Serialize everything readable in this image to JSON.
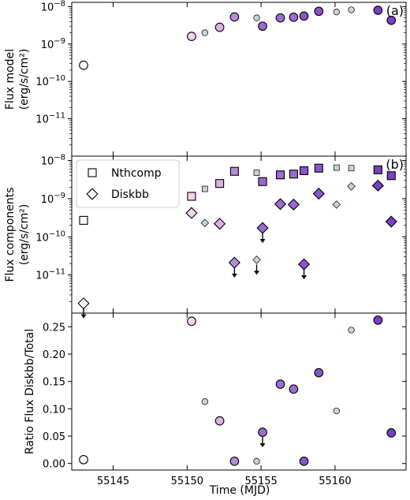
{
  "figure": {
    "xlabel": "Time (MJD)",
    "x_ticks": [
      55145,
      55150,
      55155,
      55160
    ],
    "x_tick_labels": [
      "55145",
      "55150",
      "55155",
      "55160"
    ],
    "xlim": [
      55142.2,
      55164.8
    ]
  },
  "colors": {
    "light_pink": "#f3d2ef",
    "pink": "#dfb0e6",
    "lavender": "#b98ad9",
    "medium_purple": "#9b6bd0",
    "purple": "#8a55c8",
    "dark_purple": "#7a3fc2",
    "gray_small": "#c6d4d0",
    "open": "#ffffff"
  },
  "chart_data": [
    {
      "type": "scatter",
      "panel_label": "(a)",
      "ylabel_line1": "Flux model",
      "ylabel_line2": "(erg/s/cm²)",
      "yscale": "log",
      "ylim": [
        1e-12,
        1.3e-08
      ],
      "y_ticks": [
        1e-08,
        1e-09,
        1e-10,
        1e-11
      ],
      "y_tick_labels": [
        {
          "base": "10",
          "exp": "−8"
        },
        {
          "base": "10",
          "exp": "−9"
        },
        {
          "base": "10",
          "exp": "−10"
        },
        {
          "base": "10",
          "exp": "−11"
        }
      ],
      "series": [
        {
          "marker": "circle",
          "points": [
            {
              "x": 55143.0,
              "y": 2.7e-10,
              "color": "open",
              "size": "large"
            },
            {
              "x": 55150.3,
              "y": 1.6e-09,
              "color": "light_pink",
              "size": "large"
            },
            {
              "x": 55151.2,
              "y": 2e-09,
              "color": "gray_small",
              "size": "small"
            },
            {
              "x": 55152.2,
              "y": 2.8e-09,
              "color": "pink",
              "size": "large"
            },
            {
              "x": 55153.2,
              "y": 5.3e-09,
              "color": "lavender",
              "size": "large"
            },
            {
              "x": 55154.7,
              "y": 5e-09,
              "color": "gray_small",
              "size": "small"
            },
            {
              "x": 55155.1,
              "y": 3e-09,
              "color": "medium_purple",
              "size": "large"
            },
            {
              "x": 55156.3,
              "y": 5e-09,
              "color": "medium_purple",
              "size": "large"
            },
            {
              "x": 55157.2,
              "y": 5.2e-09,
              "color": "medium_purple",
              "size": "large"
            },
            {
              "x": 55157.9,
              "y": 5.6e-09,
              "color": "purple",
              "size": "large"
            },
            {
              "x": 55158.9,
              "y": 7.5e-09,
              "color": "purple",
              "size": "large"
            },
            {
              "x": 55160.1,
              "y": 7.2e-09,
              "color": "gray_small",
              "size": "small"
            },
            {
              "x": 55161.1,
              "y": 8.2e-09,
              "color": "gray_small",
              "size": "small"
            },
            {
              "x": 55162.9,
              "y": 8e-09,
              "color": "dark_purple",
              "size": "large"
            },
            {
              "x": 55163.8,
              "y": 4.3e-09,
              "color": "dark_purple",
              "size": "large"
            }
          ]
        }
      ]
    },
    {
      "type": "scatter",
      "panel_label": "(b)",
      "ylabel_line1": "Flux components",
      "ylabel_line2": "(erg/s/cm²)",
      "yscale": "log",
      "ylim": [
        1e-12,
        1.3e-08
      ],
      "y_ticks": [
        1e-08,
        1e-09,
        1e-10,
        1e-11
      ],
      "y_tick_labels": [
        {
          "base": "10",
          "exp": "−8"
        },
        {
          "base": "10",
          "exp": "−9"
        },
        {
          "base": "10",
          "exp": "−10"
        },
        {
          "base": "10",
          "exp": "−11"
        }
      ],
      "legend": {
        "placement": "upper-left",
        "entries": [
          {
            "label": "Nthcomp",
            "marker": "square"
          },
          {
            "label": "Diskbb",
            "marker": "diamond"
          }
        ]
      },
      "series": [
        {
          "name": "Nthcomp",
          "marker": "square",
          "points": [
            {
              "x": 55143.0,
              "y": 2.7e-10,
              "color": "open",
              "size": "large"
            },
            {
              "x": 55150.3,
              "y": 1.15e-09,
              "color": "light_pink",
              "size": "large"
            },
            {
              "x": 55151.2,
              "y": 1.8e-09,
              "color": "gray_small",
              "size": "small"
            },
            {
              "x": 55152.2,
              "y": 2.5e-09,
              "color": "pink",
              "size": "large"
            },
            {
              "x": 55153.2,
              "y": 5.2e-09,
              "color": "lavender",
              "size": "large"
            },
            {
              "x": 55154.7,
              "y": 4.8e-09,
              "color": "gray_small",
              "size": "small"
            },
            {
              "x": 55155.1,
              "y": 2.8e-09,
              "color": "medium_purple",
              "size": "large"
            },
            {
              "x": 55156.3,
              "y": 4.2e-09,
              "color": "medium_purple",
              "size": "large"
            },
            {
              "x": 55157.2,
              "y": 4.4e-09,
              "color": "medium_purple",
              "size": "large"
            },
            {
              "x": 55157.9,
              "y": 5.4e-09,
              "color": "purple",
              "size": "large"
            },
            {
              "x": 55158.9,
              "y": 6.3e-09,
              "color": "purple",
              "size": "large"
            },
            {
              "x": 55160.1,
              "y": 6.5e-09,
              "color": "gray_small",
              "size": "small"
            },
            {
              "x": 55161.1,
              "y": 6.3e-09,
              "color": "gray_small",
              "size": "small"
            },
            {
              "x": 55162.9,
              "y": 5.7e-09,
              "color": "dark_purple",
              "size": "large"
            },
            {
              "x": 55163.8,
              "y": 4e-09,
              "color": "dark_purple",
              "size": "large"
            }
          ]
        },
        {
          "name": "Diskbb",
          "marker": "diamond",
          "points": [
            {
              "x": 55143.0,
              "y": 1.8e-12,
              "color": "open",
              "size": "large",
              "upper_limit": true
            },
            {
              "x": 55150.3,
              "y": 4.2e-10,
              "color": "light_pink",
              "size": "large"
            },
            {
              "x": 55151.2,
              "y": 2.3e-10,
              "color": "gray_small",
              "size": "small"
            },
            {
              "x": 55152.2,
              "y": 2.2e-10,
              "color": "pink",
              "size": "large"
            },
            {
              "x": 55153.2,
              "y": 2.1e-11,
              "color": "lavender",
              "size": "large",
              "upper_limit": true
            },
            {
              "x": 55154.7,
              "y": 2.5e-11,
              "color": "gray_small",
              "size": "small",
              "upper_limit": true
            },
            {
              "x": 55155.1,
              "y": 1.7e-10,
              "color": "medium_purple",
              "size": "large",
              "upper_limit": true
            },
            {
              "x": 55156.3,
              "y": 7.2e-10,
              "color": "medium_purple",
              "size": "large"
            },
            {
              "x": 55157.2,
              "y": 7e-10,
              "color": "medium_purple",
              "size": "large"
            },
            {
              "x": 55157.9,
              "y": 1.9e-11,
              "color": "purple",
              "size": "large",
              "upper_limit": true
            },
            {
              "x": 55158.9,
              "y": 1.35e-09,
              "color": "purple",
              "size": "large"
            },
            {
              "x": 55160.1,
              "y": 7e-10,
              "color": "gray_small",
              "size": "small"
            },
            {
              "x": 55161.1,
              "y": 2.1e-09,
              "color": "gray_small",
              "size": "small"
            },
            {
              "x": 55162.9,
              "y": 2.2e-09,
              "color": "dark_purple",
              "size": "large"
            },
            {
              "x": 55163.8,
              "y": 2.5e-10,
              "color": "dark_purple",
              "size": "large"
            }
          ]
        }
      ]
    },
    {
      "type": "scatter",
      "ylabel_line1": "Ratio Flux Diskbb/Total",
      "ylabel_line2": "",
      "yscale": "linear",
      "ylim": [
        -0.012,
        0.275
      ],
      "y_ticks": [
        0.0,
        0.05,
        0.1,
        0.15,
        0.2,
        0.25
      ],
      "y_tick_labels": [
        "0.00",
        "0.05",
        "0.10",
        "0.15",
        "0.20",
        "0.25"
      ],
      "series": [
        {
          "marker": "circle",
          "points": [
            {
              "x": 55143.0,
              "y": 0.007,
              "color": "open",
              "size": "large"
            },
            {
              "x": 55150.3,
              "y": 0.26,
              "color": "light_pink",
              "size": "large"
            },
            {
              "x": 55151.2,
              "y": 0.113,
              "color": "gray_small",
              "size": "small"
            },
            {
              "x": 55152.2,
              "y": 0.078,
              "color": "pink",
              "size": "large"
            },
            {
              "x": 55153.2,
              "y": 0.004,
              "color": "lavender",
              "size": "large"
            },
            {
              "x": 55154.7,
              "y": 0.004,
              "color": "gray_small",
              "size": "small"
            },
            {
              "x": 55155.1,
              "y": 0.057,
              "color": "medium_purple",
              "size": "large",
              "upper_limit": true
            },
            {
              "x": 55156.3,
              "y": 0.145,
              "color": "medium_purple",
              "size": "large"
            },
            {
              "x": 55157.2,
              "y": 0.136,
              "color": "medium_purple",
              "size": "large"
            },
            {
              "x": 55157.9,
              "y": 0.004,
              "color": "purple",
              "size": "large"
            },
            {
              "x": 55158.9,
              "y": 0.166,
              "color": "purple",
              "size": "large"
            },
            {
              "x": 55160.1,
              "y": 0.096,
              "color": "gray_small",
              "size": "small"
            },
            {
              "x": 55161.1,
              "y": 0.244,
              "color": "gray_small",
              "size": "small"
            },
            {
              "x": 55162.9,
              "y": 0.262,
              "color": "dark_purple",
              "size": "large"
            },
            {
              "x": 55163.8,
              "y": 0.056,
              "color": "dark_purple",
              "size": "large"
            }
          ]
        }
      ]
    }
  ]
}
